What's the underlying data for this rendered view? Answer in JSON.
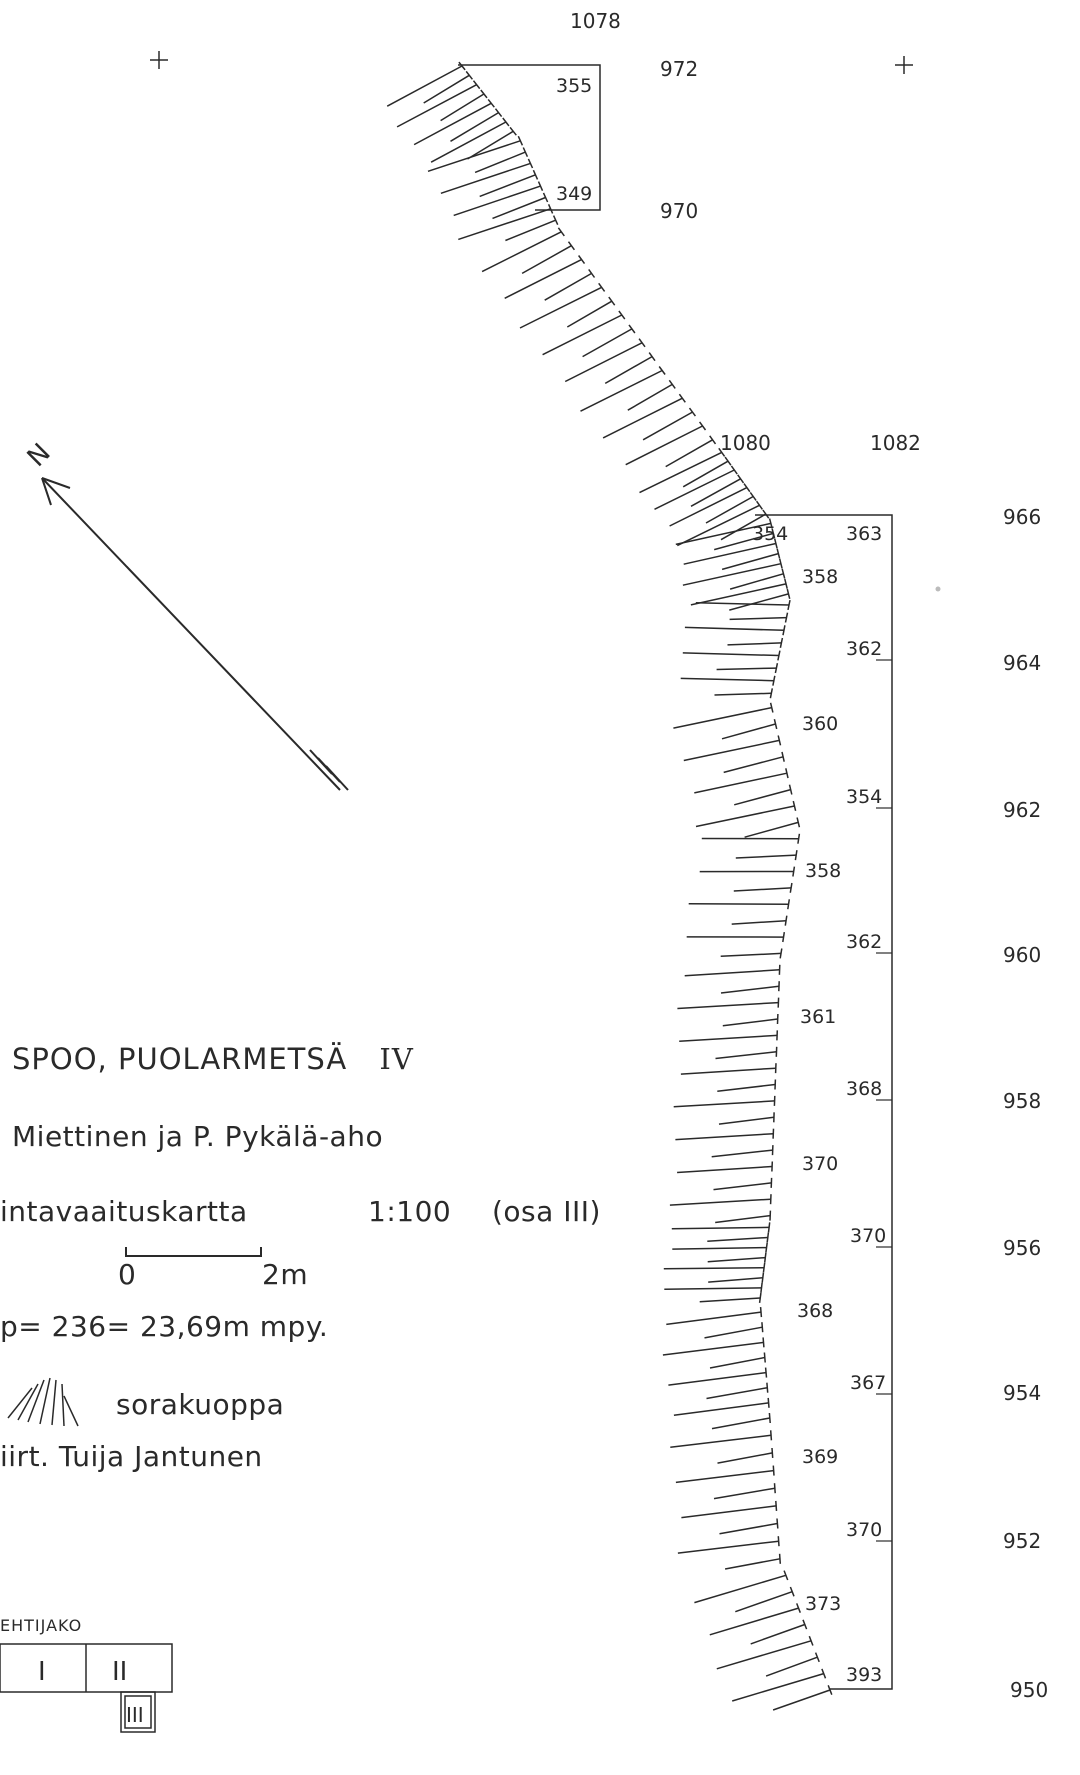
{
  "map": {
    "title": "SPOO, PUOLARMETSÄ",
    "title_numeral": "IV",
    "authors": "Miettinen ja P. Pykälä-aho",
    "map_type": "intavaaituskartta",
    "scale": "1:100",
    "part": "(osa III)",
    "scalebar": {
      "start_label": "0",
      "end_label": "2m"
    },
    "datum": "p= 236= 23,69m mpy.",
    "gravel_pit_label": "sorakuoppa",
    "drawn_by": "iirt. Tuija Jantunen",
    "sheet_index": {
      "title": "EHTIJAKO",
      "cells": [
        "I",
        "II",
        "III"
      ],
      "current": "III"
    },
    "north_arrow": {
      "label": "N"
    },
    "grid_labels": {
      "x_top": [
        "1078"
      ],
      "x_mid": [
        "1080",
        "1082"
      ],
      "y_upper": [
        "972",
        "970"
      ],
      "y_right": [
        "966",
        "964",
        "962",
        "960",
        "958",
        "956",
        "954",
        "952",
        "950"
      ]
    },
    "spot_heights_upper": [
      "355",
      "349"
    ],
    "spot_heights_inner": [
      "354",
      "358",
      "360",
      "358",
      "361",
      "370",
      "368",
      "369",
      "373"
    ],
    "spot_heights_edge": [
      "363",
      "362",
      "354",
      "362",
      "368",
      "370",
      "367",
      "370",
      "393"
    ],
    "colors": {
      "ink": "#2a2a2a",
      "paper": "#ffffff"
    }
  }
}
